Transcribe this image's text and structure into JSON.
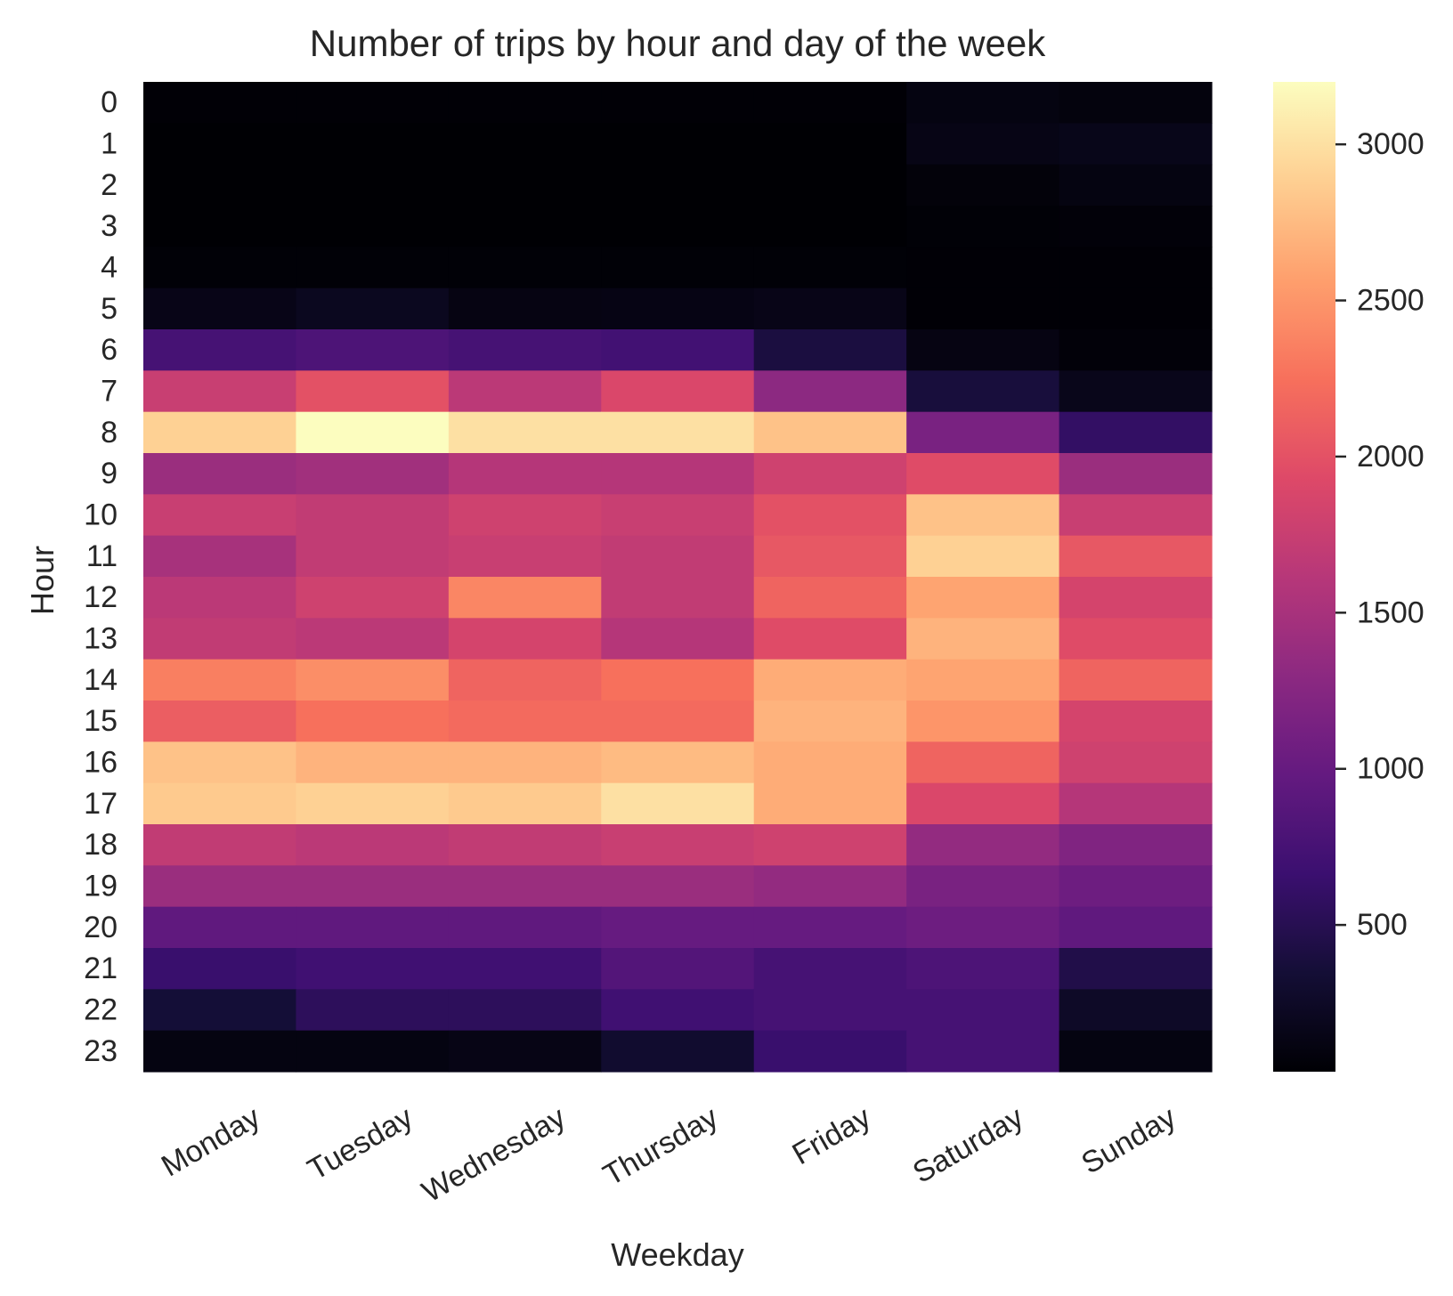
{
  "chart_data": {
    "type": "heatmap",
    "title": "Number of trips by hour and day of the week",
    "xlabel": "Weekday",
    "ylabel": "Hour",
    "x_categories": [
      "Monday",
      "Tuesday",
      "Wednesday",
      "Thursday",
      "Friday",
      "Saturday",
      "Sunday"
    ],
    "y_categories": [
      "0",
      "1",
      "2",
      "3",
      "4",
      "5",
      "6",
      "7",
      "8",
      "9",
      "10",
      "11",
      "12",
      "13",
      "14",
      "15",
      "16",
      "17",
      "18",
      "19",
      "20",
      "21",
      "22",
      "23"
    ],
    "values": [
      [
        40,
        40,
        40,
        40,
        40,
        110,
        90
      ],
      [
        30,
        30,
        30,
        30,
        30,
        140,
        160
      ],
      [
        30,
        30,
        30,
        30,
        30,
        70,
        110
      ],
      [
        30,
        30,
        30,
        30,
        30,
        50,
        60
      ],
      [
        50,
        50,
        50,
        50,
        50,
        40,
        40
      ],
      [
        150,
        200,
        120,
        130,
        150,
        40,
        40
      ],
      [
        750,
        800,
        750,
        720,
        400,
        120,
        60
      ],
      [
        1750,
        2000,
        1650,
        1900,
        1300,
        380,
        170
      ],
      [
        2900,
        3200,
        3000,
        3000,
        2800,
        1150,
        600
      ],
      [
        1400,
        1450,
        1600,
        1600,
        1800,
        1950,
        1400
      ],
      [
        1750,
        1700,
        1800,
        1750,
        2000,
        2800,
        1750
      ],
      [
        1500,
        1700,
        1750,
        1700,
        2050,
        2900,
        2050
      ],
      [
        1650,
        1800,
        2400,
        1700,
        2150,
        2600,
        1850
      ],
      [
        1700,
        1650,
        1850,
        1600,
        1950,
        2700,
        1950
      ],
      [
        2350,
        2450,
        2150,
        2250,
        2650,
        2600,
        2150
      ],
      [
        2100,
        2250,
        2200,
        2200,
        2700,
        2500,
        1850
      ],
      [
        2800,
        2700,
        2700,
        2750,
        2650,
        2150,
        1800
      ],
      [
        2850,
        2900,
        2850,
        3000,
        2650,
        1900,
        1600
      ],
      [
        1700,
        1650,
        1700,
        1750,
        1800,
        1350,
        1200
      ],
      [
        1400,
        1400,
        1400,
        1400,
        1350,
        1150,
        1050
      ],
      [
        950,
        950,
        950,
        1000,
        1000,
        1050,
        950
      ],
      [
        650,
        700,
        700,
        850,
        750,
        800,
        450
      ],
      [
        350,
        550,
        550,
        700,
        750,
        750,
        250
      ],
      [
        110,
        110,
        140,
        300,
        650,
        750,
        110
      ]
    ],
    "vmin": 30,
    "vmax": 3200,
    "colormap": "magma",
    "colorbar_ticks": [
      "500",
      "1000",
      "1500",
      "2000",
      "2500",
      "3000"
    ],
    "colorbar_tick_values": [
      500,
      1000,
      1500,
      2000,
      2500,
      3000
    ],
    "grid": false,
    "x_tick_rotation": "30 degrees"
  }
}
